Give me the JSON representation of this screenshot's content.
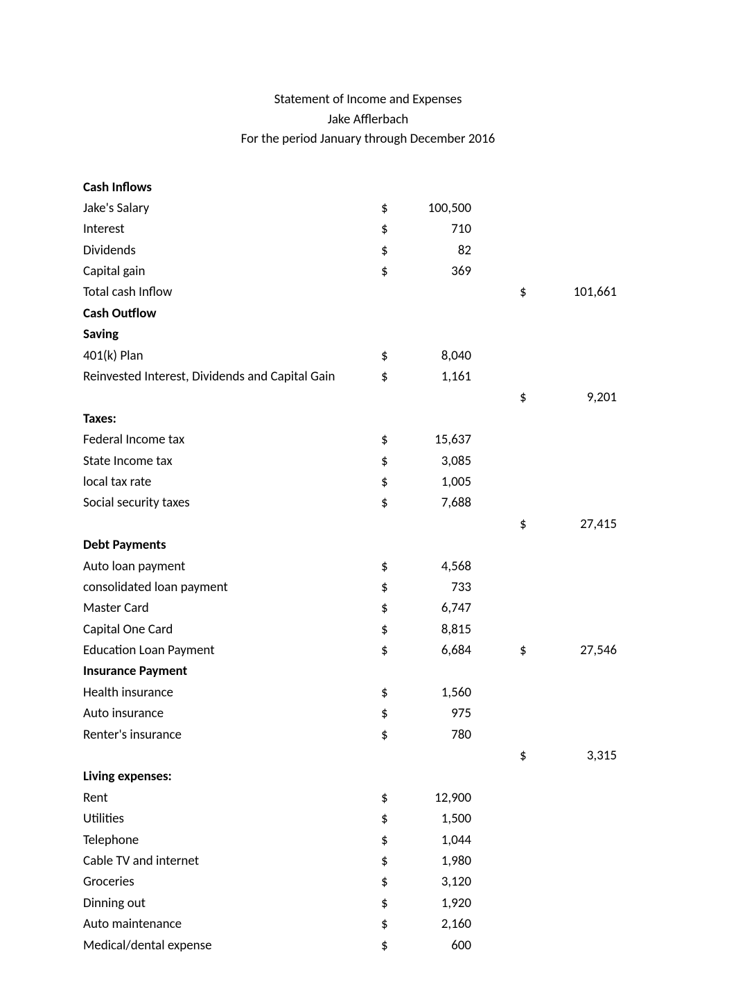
{
  "header": {
    "line1": "Statement of Income and Expenses",
    "line2": "Jake Afflerbach",
    "line3": "For the period January through December 2016"
  },
  "sections": {
    "cash_inflows": {
      "heading": "Cash Inflows",
      "rows": [
        {
          "label": "Jake's Salary",
          "cur": "$",
          "amt": "100,500"
        },
        {
          "label": "Interest",
          "cur": "$",
          "amt": "710"
        },
        {
          "label": "Dividends",
          "cur": "$",
          "amt": "82"
        },
        {
          "label": "Capital gain",
          "cur": "$",
          "amt": "369"
        }
      ],
      "total": {
        "label": "Total cash Inflow",
        "cur": "$",
        "amt": "101,661"
      }
    },
    "cash_outflow": {
      "heading": "Cash Outflow"
    },
    "saving": {
      "heading": "Saving",
      "rows": [
        {
          "label": "401(k) Plan",
          "cur": "$",
          "amt": "8,040"
        },
        {
          "label": "Reinvested Interest, Dividends and Capital Gain",
          "cur": "$",
          "amt": "1,161"
        }
      ],
      "subtotal": {
        "cur": "$",
        "amt": "9,201"
      }
    },
    "taxes": {
      "heading": "Taxes:",
      "rows": [
        {
          "label": "Federal Income tax",
          "cur": "$",
          "amt": "15,637"
        },
        {
          "label": "State Income tax",
          "cur": "$",
          "amt": "3,085"
        },
        {
          "label": "local tax rate",
          "cur": "$",
          "amt": "1,005"
        },
        {
          "label": "Social security taxes",
          "cur": "$",
          "amt": "7,688"
        }
      ],
      "subtotal": {
        "cur": "$",
        "amt": "27,415"
      }
    },
    "debt_payments": {
      "heading": "Debt Payments",
      "rows": [
        {
          "label": "Auto loan payment",
          "cur": "$",
          "amt": "4,568"
        },
        {
          "label": "consolidated loan payment",
          "cur": "$",
          "amt": "733"
        },
        {
          "label": "Master Card",
          "cur": "$",
          "amt": "6,747"
        },
        {
          "label": "Capital One Card",
          "cur": "$",
          "amt": "8,815"
        },
        {
          "label": "Education Loan Payment",
          "cur": "$",
          "amt": "6,684",
          "sub_cur": "$",
          "sub_amt": "27,546"
        }
      ]
    },
    "insurance": {
      "heading": "Insurance Payment",
      "rows": [
        {
          "label": "Health insurance",
          "cur": "$",
          "amt": "1,560"
        },
        {
          "label": "Auto insurance",
          "cur": "$",
          "amt": "975"
        },
        {
          "label": "Renter's insurance",
          "cur": "$",
          "amt": "780"
        }
      ],
      "subtotal": {
        "cur": "$",
        "amt": "3,315"
      }
    },
    "living": {
      "heading": "Living expenses:",
      "rows": [
        {
          "label": "Rent",
          "cur": "$",
          "amt": "12,900"
        },
        {
          "label": "Utilities",
          "cur": "$",
          "amt": "1,500"
        },
        {
          "label": "Telephone",
          "cur": "$",
          "amt": "1,044"
        },
        {
          "label": "Cable TV and internet",
          "cur": "$",
          "amt": "1,980"
        },
        {
          "label": "Groceries",
          "cur": "$",
          "amt": "3,120"
        },
        {
          "label": "Dinning out",
          "cur": "$",
          "amt": "1,920"
        },
        {
          "label": "Auto maintenance",
          "cur": "$",
          "amt": "2,160"
        },
        {
          "label": "Medical/dental expense",
          "cur": "$",
          "amt": "600"
        }
      ]
    }
  },
  "style": {
    "font_family": "Calibri, Arial, sans-serif",
    "font_size_pt": 14,
    "text_color": "#000000",
    "background_color": "#ffffff"
  }
}
